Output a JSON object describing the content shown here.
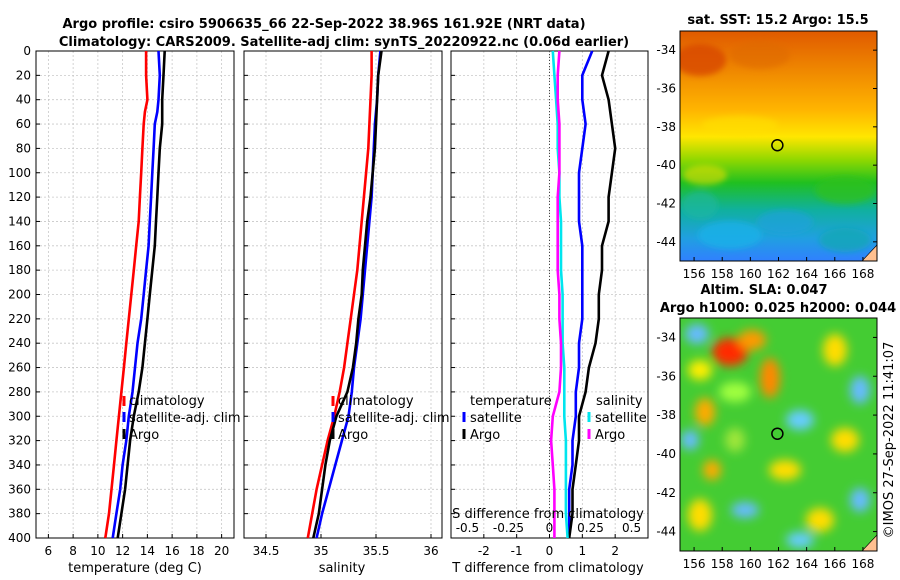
{
  "title": {
    "line1": "Argo profile: csiro 5906635_66 22-Sep-2022 38.96S 161.92E (NRT data)",
    "line2": "Climatology: CARS2009. Satellite-adj clim: synTS_20220922.nc (0.06d earlier)"
  },
  "colors": {
    "climatology": "#ff0000",
    "satellite": "#0000ff",
    "argo": "#000000",
    "sat_s": "#00e5ee",
    "argo_s": "#ff00ff",
    "grid": "#c8c8c8"
  },
  "chart_data": [
    {
      "type": "line",
      "id": "temperature",
      "xlabel": "temperature (deg C)",
      "ylabel": "",
      "xlim": [
        5,
        21
      ],
      "ylim": [
        400,
        0
      ],
      "xticks": [
        6,
        8,
        10,
        12,
        14,
        16,
        18,
        20
      ],
      "yticks": [
        0,
        20,
        40,
        60,
        80,
        100,
        120,
        140,
        160,
        180,
        200,
        220,
        240,
        260,
        280,
        300,
        320,
        340,
        360,
        380,
        400
      ],
      "depth": [
        0,
        20,
        40,
        50,
        60,
        80,
        100,
        120,
        140,
        160,
        180,
        200,
        220,
        240,
        260,
        280,
        300,
        320,
        340,
        360,
        380,
        400
      ],
      "series": [
        {
          "name": "climatology",
          "values": [
            13.9,
            13.9,
            14.0,
            13.8,
            13.7,
            13.6,
            13.5,
            13.4,
            13.3,
            13.1,
            12.9,
            12.7,
            12.5,
            12.3,
            12.1,
            11.9,
            11.7,
            11.5,
            11.3,
            11.1,
            10.9,
            10.6
          ]
        },
        {
          "name": "satellite-adj. clim",
          "values": [
            14.9,
            15.0,
            14.9,
            14.8,
            14.6,
            14.5,
            14.4,
            14.3,
            14.2,
            14.1,
            13.9,
            13.7,
            13.5,
            13.2,
            13.0,
            12.8,
            12.5,
            12.3,
            12.0,
            11.8,
            11.5,
            11.2
          ]
        },
        {
          "name": "Argo",
          "values": [
            15.4,
            15.3,
            15.2,
            15.2,
            15.2,
            15.0,
            14.9,
            14.8,
            14.7,
            14.6,
            14.4,
            14.2,
            14.0,
            13.8,
            13.6,
            13.3,
            12.9,
            12.6,
            12.4,
            12.2,
            11.9,
            11.6
          ]
        }
      ],
      "legend": [
        "climatology",
        "satellite-adj. clim",
        "Argo"
      ]
    },
    {
      "type": "line",
      "id": "salinity",
      "xlabel": "salinity",
      "xlim": [
        34.3,
        36.1
      ],
      "ylim": [
        400,
        0
      ],
      "xticks": [
        "34.5",
        "35",
        "35.5",
        "36"
      ],
      "depth": [
        0,
        20,
        40,
        60,
        80,
        100,
        120,
        140,
        160,
        180,
        200,
        220,
        240,
        260,
        280,
        300,
        320,
        340,
        360,
        380,
        400
      ],
      "series": [
        {
          "name": "climatology",
          "values": [
            35.46,
            35.46,
            35.45,
            35.44,
            35.43,
            35.41,
            35.39,
            35.37,
            35.35,
            35.33,
            35.3,
            35.27,
            35.24,
            35.21,
            35.17,
            35.12,
            35.06,
            35.01,
            34.96,
            34.92,
            34.88
          ]
        },
        {
          "name": "satellite-adj. clim",
          "values": [
            35.54,
            35.52,
            35.51,
            35.49,
            35.48,
            35.47,
            35.46,
            35.44,
            35.42,
            35.4,
            35.38,
            35.36,
            35.33,
            35.3,
            35.28,
            35.25,
            35.19,
            35.13,
            35.07,
            35.01,
            34.96
          ]
        },
        {
          "name": "Argo",
          "values": [
            35.55,
            35.52,
            35.51,
            35.5,
            35.49,
            35.47,
            35.45,
            35.42,
            35.4,
            35.38,
            35.37,
            35.34,
            35.32,
            35.29,
            35.24,
            35.14,
            35.08,
            35.04,
            35.01,
            34.98,
            34.93
          ]
        }
      ],
      "legend": [
        "climatology",
        "satellite-adj. clim",
        "Argo"
      ]
    },
    {
      "type": "line",
      "id": "difference",
      "xlabel": "T difference from climatology",
      "xlabel_top": "S difference from climatology",
      "xlim": [
        -3,
        3
      ],
      "ylim": [
        400,
        0
      ],
      "xticks": [
        -2,
        -1,
        0,
        1,
        2
      ],
      "xticks_top": [
        "-0.5",
        "-0.25",
        "0",
        "0.25",
        "0.5"
      ],
      "depth": [
        0,
        20,
        40,
        60,
        80,
        100,
        120,
        140,
        160,
        180,
        200,
        220,
        240,
        260,
        280,
        300,
        320,
        340,
        360,
        380,
        400
      ],
      "series": [
        {
          "name": "T satellite",
          "values": [
            1.3,
            1.0,
            1.0,
            1.1,
            1.0,
            0.9,
            0.9,
            0.9,
            1.0,
            1.0,
            1.0,
            1.0,
            0.9,
            0.9,
            0.8,
            0.8,
            0.7,
            0.7,
            0.6,
            0.6,
            0.6
          ]
        },
        {
          "name": "T Argo",
          "values": [
            1.8,
            1.6,
            1.8,
            1.9,
            2.0,
            1.9,
            1.8,
            1.8,
            1.6,
            1.6,
            1.5,
            1.5,
            1.4,
            1.2,
            1.1,
            0.9,
            0.9,
            0.8,
            0.7,
            0.7,
            0.6
          ]
        },
        {
          "name": "S satellite",
          "values": [
            0.02,
            0.03,
            0.04,
            0.05,
            0.05,
            0.06,
            0.06,
            0.07,
            0.07,
            0.07,
            0.08,
            0.08,
            0.08,
            0.09,
            0.09,
            0.09,
            0.1,
            0.1,
            0.1,
            0.1,
            0.11
          ]
        },
        {
          "name": "S Argo",
          "values": [
            0.06,
            0.05,
            0.05,
            0.06,
            0.06,
            0.06,
            0.05,
            0.05,
            0.05,
            0.05,
            0.06,
            0.06,
            0.07,
            0.07,
            0.06,
            0.02,
            0.01,
            0.02,
            0.03,
            0.03,
            0.03
          ]
        }
      ],
      "legend_left_title": "temperature",
      "legend_right_title": "salinity",
      "legend_left": [
        "satellite",
        "Argo"
      ],
      "legend_right": [
        "satellite",
        "Argo"
      ]
    },
    {
      "type": "heatmap",
      "id": "sst-map",
      "title": "sat. SST: 15.2 Argo: 15.5",
      "sat_value": 15.2,
      "argo_value": 15.5,
      "xlim": [
        155,
        169
      ],
      "ylim": [
        -45,
        -33
      ],
      "xticks": [
        156,
        158,
        160,
        162,
        164,
        166,
        168
      ],
      "yticks": [
        -34,
        -36,
        -38,
        -40,
        -42,
        -44
      ],
      "marker": {
        "lon": 161.92,
        "lat": -38.96
      }
    },
    {
      "type": "heatmap",
      "id": "sla-map",
      "title_line1": "Altim. SLA: 0.047",
      "title_line2": "Argo h1000: 0.025 h2000: 0.044",
      "xlim": [
        155,
        169
      ],
      "ylim": [
        -45,
        -33
      ],
      "xticks": [
        156,
        158,
        160,
        162,
        164,
        166,
        168
      ],
      "yticks": [
        -34,
        -36,
        -38,
        -40,
        -42,
        -44
      ],
      "marker": {
        "lon": 161.92,
        "lat": -38.96
      }
    }
  ],
  "stamp": "©IMOS 27-Sep-2022 11:41:07"
}
